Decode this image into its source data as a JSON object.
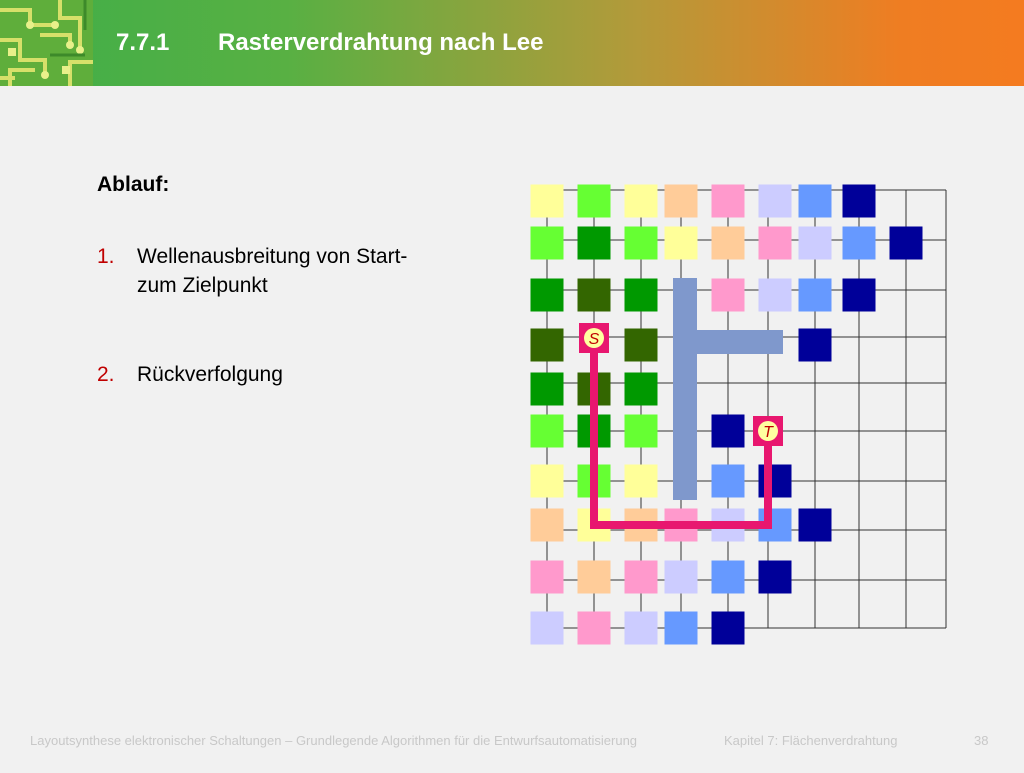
{
  "header": {
    "section_number": "7.7.1",
    "title": "Rasterverdrahtung nach Lee"
  },
  "content": {
    "heading": "Ablauf:",
    "steps": [
      {
        "marker": "1.",
        "line1": "Wellenausbreitung von Start-",
        "line2": "zum Zielpunkt"
      },
      {
        "marker": "2.",
        "line1": "Rückverfolgung"
      }
    ]
  },
  "diagram": {
    "start_label": "S",
    "target_label": "T",
    "path_color": "#e8176f",
    "obstacle_color": "#7f98cc",
    "wave_colors": [
      "#ffff99",
      "#66ff33",
      "#009900",
      "#336600",
      "#ffcc99",
      "#ff99cc",
      "#ccccff",
      "#6699ff",
      "#000099"
    ]
  },
  "footer": {
    "course": "Layoutsynthese elektronischer Schaltungen – Grundlegende Algorithmen für die Entwurfsautomatisierung",
    "chapter": "Kapitel 7: Flächenverdrahtung",
    "page": "38"
  }
}
